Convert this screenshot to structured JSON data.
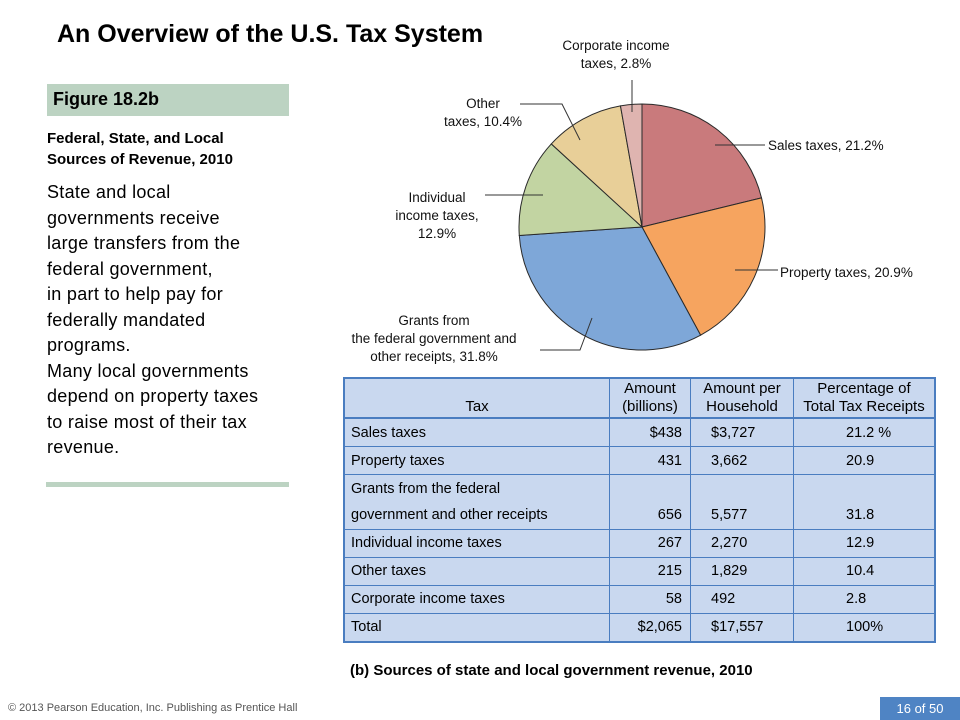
{
  "title": "An Overview of the U.S. Tax System",
  "figure_label": "Figure 18.2b",
  "subtitle_line1": "Federal, State, and Local",
  "subtitle_line2": "Sources of Revenue, 2010",
  "body_lines": [
    "State and local",
    "governments receive",
    "large transfers from the",
    "federal government,",
    "in part to help pay for",
    "federally mandated",
    "programs.",
    "Many local governments",
    "depend on property taxes",
    "to raise most of their tax",
    "revenue."
  ],
  "chart_data": [
    {
      "type": "pie",
      "slices": [
        {
          "label_lines": [
            "Sales taxes, 21.2%"
          ],
          "value": 21.2,
          "color": "#c97a7c"
        },
        {
          "label_lines": [
            "Property taxes, 20.9%"
          ],
          "value": 20.9,
          "color": "#f6a45f"
        },
        {
          "label_lines": [
            "Grants from",
            "the federal government and",
            "other receipts, 31.8%"
          ],
          "value": 31.8,
          "color": "#7ea7d8"
        },
        {
          "label_lines": [
            "Individual",
            "income taxes,",
            "12.9%"
          ],
          "value": 12.9,
          "color": "#c2d4a2"
        },
        {
          "label_lines": [
            "Other",
            "taxes, 10.4%"
          ],
          "value": 10.4,
          "color": "#e8cf98"
        },
        {
          "label_lines": [
            "Corporate income",
            "taxes, 2.8%"
          ],
          "value": 2.8,
          "color": "#dfb4b0"
        }
      ]
    },
    {
      "type": "table",
      "headers": [
        [
          "Tax"
        ],
        [
          "Amount",
          "(billions)"
        ],
        [
          "Amount per",
          "Household"
        ],
        [
          "Percentage of",
          "Total Tax Receipts"
        ]
      ],
      "rows": [
        {
          "tax": "Sales taxes",
          "amount": "$438",
          "per_household": "$3,727",
          "percentage": "21.2 %"
        },
        {
          "tax": "Property taxes",
          "amount": "431",
          "per_household": "3,662",
          "percentage": "20.9"
        },
        {
          "tax": "Grants from the federal",
          "amount": "",
          "per_household": "",
          "percentage": ""
        },
        {
          "tax": "government and other receipts",
          "amount": "656",
          "per_household": "5,577",
          "percentage": "31.8"
        },
        {
          "tax": "Individual income taxes",
          "amount": "267",
          "per_household": "2,270",
          "percentage": "12.9"
        },
        {
          "tax": "Other taxes",
          "amount": "215",
          "per_household": "1,829",
          "percentage": "10.4"
        },
        {
          "tax": "Corporate income taxes",
          "amount": "58",
          "per_household": "492",
          "percentage": "2.8"
        },
        {
          "tax": "Total",
          "amount": "$2,065",
          "per_household": "$17,557",
          "percentage": "100%"
        }
      ]
    }
  ],
  "caption": "(b) Sources of state and local government revenue, 2010",
  "footer": "© 2013 Pearson Education, Inc. Publishing as Prentice Hall",
  "page_number": "16 of 50"
}
